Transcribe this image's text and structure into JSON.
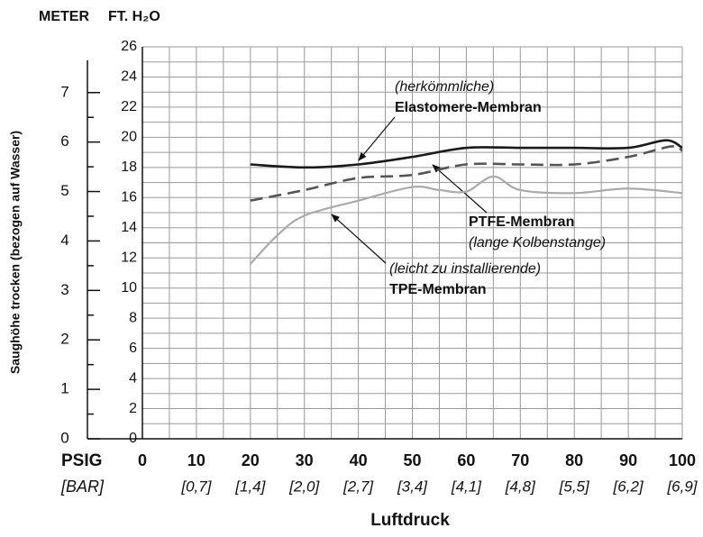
{
  "chart_data": {
    "type": "line",
    "y_axis_label": "Saughöhe trocken (bezogen auf Wasser)",
    "x_axis_label": "Luftdruck",
    "y_unit_label": "FT. H₂O",
    "y2_unit_label": "METER",
    "x_unit_label": "PSIG",
    "x2_unit_label": "[BAR]",
    "xlim": [
      0,
      100
    ],
    "xticks": [
      0,
      10,
      20,
      30,
      40,
      50,
      60,
      70,
      80,
      90,
      100
    ],
    "x2_tick_labels": [
      null,
      "[0,7]",
      "[1,4]",
      "[2,0]",
      "[2,7]",
      "[3,4]",
      "[4,1]",
      "[4,8]",
      "[5,5]",
      "[6,2]",
      "[6,9]"
    ],
    "ylim": [
      0,
      26
    ],
    "yticks": [
      0,
      2,
      4,
      6,
      8,
      10,
      12,
      14,
      16,
      18,
      20,
      22,
      24,
      26
    ],
    "y2lim": [
      0,
      7.925
    ],
    "y2ticks": [
      0,
      1,
      2,
      3,
      4,
      5,
      6,
      7
    ],
    "grid": true,
    "series": [
      {
        "name": "Elastomere-Membran",
        "color": "#1a1a1a",
        "dash": false,
        "x": [
          20,
          30,
          40,
          50,
          60,
          70,
          80,
          90,
          97,
          100
        ],
        "values": [
          18.2,
          18.0,
          18.2,
          18.7,
          19.3,
          19.3,
          19.3,
          19.3,
          19.8,
          19.3
        ]
      },
      {
        "name": "PTFE-Membran",
        "color": "#555555",
        "dash": true,
        "x": [
          20,
          30,
          40,
          50,
          60,
          70,
          80,
          90,
          98,
          100
        ],
        "values": [
          15.8,
          16.5,
          17.3,
          17.5,
          18.2,
          18.2,
          18.2,
          18.7,
          19.4,
          19.1
        ]
      },
      {
        "name": "TPE-Membran",
        "color": "#aaaaaa",
        "dash": false,
        "x": [
          20,
          25,
          30,
          40,
          50,
          55,
          60,
          65,
          70,
          80,
          90,
          100
        ],
        "values": [
          11.6,
          13.5,
          14.8,
          15.8,
          16.7,
          16.5,
          16.4,
          17.4,
          16.5,
          16.3,
          16.6,
          16.3
        ]
      }
    ],
    "annotations": [
      {
        "lines": [
          "(herkömmliche)",
          "Elastomere-Membran"
        ]
      },
      {
        "lines": [
          "PTFE-Membran",
          "(lange Kolbenstange)"
        ]
      },
      {
        "lines": [
          "(leicht zu installierende)",
          "TPE-Membran"
        ]
      }
    ]
  }
}
